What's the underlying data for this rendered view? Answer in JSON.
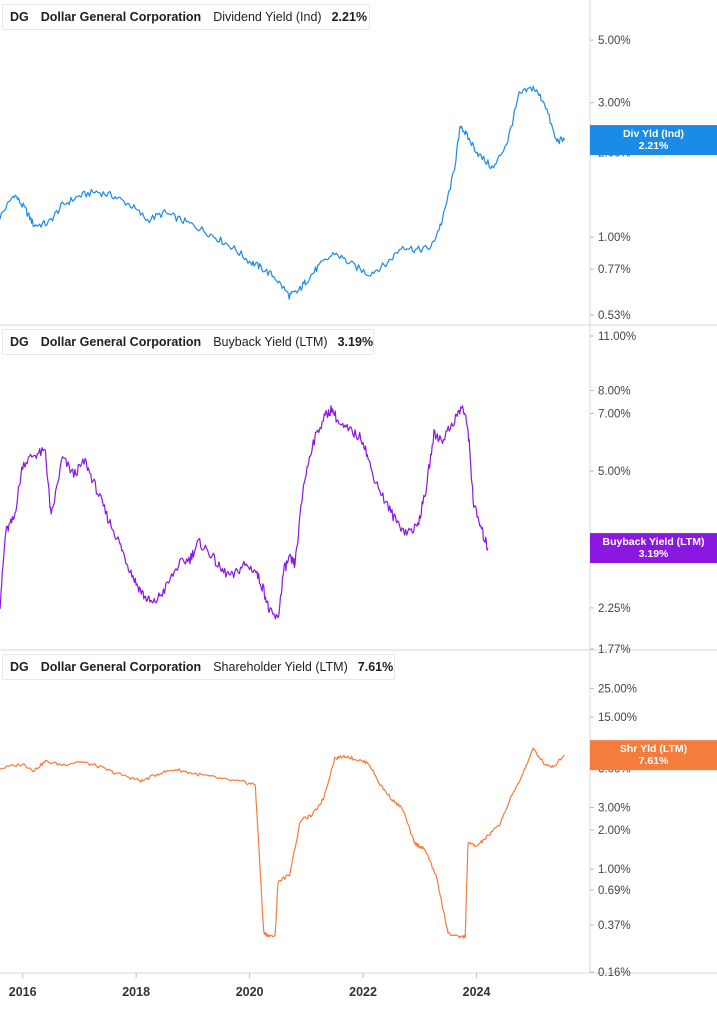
{
  "chart_data": [
    {
      "type": "line",
      "ticker": "DG",
      "company": "Dollar General Corporation",
      "metric": "Dividend Yield (Ind)",
      "latest_value": "2.21%",
      "marker_label": "Div Yld (Ind)",
      "marker_value": "2.21%",
      "color": "#1a8ce8",
      "scale": "log",
      "ylim": [
        0.5,
        6.5
      ],
      "yticks": [
        {
          "value": 5.0,
          "label": "5.00%"
        },
        {
          "value": 3.0,
          "label": "3.00%"
        },
        {
          "value": 2.0,
          "label": "2.00%"
        },
        {
          "value": 1.0,
          "label": "1.00%"
        },
        {
          "value": 0.77,
          "label": "0.77%"
        },
        {
          "value": 0.53,
          "label": "0.53%"
        }
      ],
      "x": [
        2015.6,
        2015.85,
        2016.05,
        2016.2,
        2016.45,
        2016.7,
        2017.0,
        2017.3,
        2017.6,
        2017.9,
        2018.2,
        2018.5,
        2018.8,
        2019.1,
        2019.4,
        2019.7,
        2020.0,
        2020.2,
        2020.45,
        2020.7,
        2020.85,
        2021.0,
        2021.2,
        2021.5,
        2021.8,
        2022.1,
        2022.4,
        2022.7,
        2022.95,
        2023.2,
        2023.4,
        2023.6,
        2023.72,
        2023.85,
        2024.05,
        2024.3,
        2024.55,
        2024.75,
        2025.0,
        2025.2,
        2025.4,
        2025.55
      ],
      "values": [
        1.18,
        1.42,
        1.25,
        1.1,
        1.12,
        1.3,
        1.4,
        1.45,
        1.4,
        1.3,
        1.15,
        1.22,
        1.15,
        1.08,
        1.0,
        0.92,
        0.82,
        0.78,
        0.72,
        0.62,
        0.64,
        0.7,
        0.78,
        0.88,
        0.8,
        0.74,
        0.8,
        0.93,
        0.9,
        0.92,
        1.15,
        1.7,
        2.5,
        2.25,
        1.95,
        1.75,
        2.2,
        3.2,
        3.4,
        3.0,
        2.2,
        2.21
      ]
    },
    {
      "type": "line",
      "ticker": "DG",
      "company": "Dollar General Corporation",
      "metric": "Buyback Yield (LTM)",
      "latest_value": "3.19%",
      "marker_label": "Buyback Yield (LTM)",
      "marker_value": "3.19%",
      "color": "#8a18e0",
      "scale": "log",
      "ylim": [
        1.77,
        11.0
      ],
      "yticks": [
        {
          "value": 11.0,
          "label": "11.00%"
        },
        {
          "value": 8.0,
          "label": "8.00%"
        },
        {
          "value": 7.0,
          "label": "7.00%"
        },
        {
          "value": 5.0,
          "label": "5.00%"
        },
        {
          "value": 2.25,
          "label": "2.25%"
        },
        {
          "value": 1.77,
          "label": "1.77%"
        }
      ],
      "x": [
        2015.6,
        2015.7,
        2015.85,
        2016.0,
        2016.2,
        2016.4,
        2016.5,
        2016.7,
        2016.9,
        2017.1,
        2017.3,
        2017.5,
        2017.7,
        2017.85,
        2018.0,
        2018.15,
        2018.3,
        2018.5,
        2018.75,
        2018.95,
        2019.1,
        2019.3,
        2019.5,
        2019.7,
        2019.9,
        2020.1,
        2020.25,
        2020.35,
        2020.5,
        2020.6,
        2020.7,
        2020.8,
        2020.95,
        2021.1,
        2021.3,
        2021.45,
        2021.6,
        2021.8,
        2022.0,
        2022.15,
        2022.35,
        2022.55,
        2022.75,
        2022.95,
        2023.1,
        2023.25,
        2023.4,
        2023.6,
        2023.75,
        2023.85,
        2023.95,
        2024.1,
        2024.2
      ],
      "values": [
        2.3,
        3.5,
        3.8,
        5.2,
        5.5,
        5.6,
        3.8,
        5.4,
        4.9,
        5.3,
        4.5,
        3.8,
        3.3,
        2.9,
        2.6,
        2.4,
        2.3,
        2.5,
        2.9,
        3.0,
        3.3,
        3.1,
        2.8,
        2.7,
        2.9,
        2.8,
        2.5,
        2.2,
        2.1,
        2.8,
        3.0,
        2.9,
        4.6,
        5.8,
        6.8,
        7.2,
        6.5,
        6.3,
        6.0,
        5.0,
        4.3,
        3.8,
        3.5,
        3.6,
        4.4,
        6.2,
        6.0,
        6.7,
        7.3,
        6.4,
        4.1,
        3.5,
        3.19
      ]
    },
    {
      "type": "line",
      "ticker": "DG",
      "company": "Dollar General Corporation",
      "metric": "Shareholder Yield (LTM)",
      "latest_value": "7.61%",
      "marker_label": "Shr Yld (LTM)",
      "marker_value": "7.61%",
      "color": "#f47c3c",
      "scale": "log",
      "ylim": [
        0.16,
        40
      ],
      "yticks": [
        {
          "value": 25.0,
          "label": "25.00%"
        },
        {
          "value": 15.0,
          "label": "15.00%"
        },
        {
          "value": 6.0,
          "label": "6.00%"
        },
        {
          "value": 3.0,
          "label": "3.00%"
        },
        {
          "value": 2.0,
          "label": "2.00%"
        },
        {
          "value": 1.0,
          "label": "1.00%"
        },
        {
          "value": 0.69,
          "label": "0.69%"
        },
        {
          "value": 0.37,
          "label": "0.37%"
        },
        {
          "value": 0.16,
          "label": "0.16%"
        }
      ],
      "x": [
        2015.6,
        2016.0,
        2016.2,
        2016.4,
        2016.7,
        2017.0,
        2017.3,
        2017.6,
        2017.9,
        2018.1,
        2018.4,
        2018.7,
        2019.0,
        2019.3,
        2019.6,
        2019.9,
        2020.1,
        2020.25,
        2020.3,
        2020.45,
        2020.5,
        2020.7,
        2020.9,
        2021.1,
        2021.3,
        2021.5,
        2021.7,
        2021.9,
        2022.1,
        2022.3,
        2022.5,
        2022.7,
        2022.9,
        2023.0,
        2023.1,
        2023.3,
        2023.45,
        2023.5,
        2023.65,
        2023.8,
        2023.85,
        2024.0,
        2024.2,
        2024.4,
        2024.6,
        2024.8,
        2025.0,
        2025.2,
        2025.35,
        2025.55
      ],
      "values": [
        6.0,
        6.5,
        5.8,
        6.8,
        6.4,
        6.8,
        6.3,
        5.6,
        5.1,
        4.8,
        5.5,
        5.9,
        5.5,
        5.2,
        4.9,
        4.7,
        4.5,
        0.32,
        0.31,
        0.3,
        0.8,
        0.9,
        2.4,
        2.6,
        3.5,
        7.2,
        7.5,
        7.0,
        6.6,
        4.5,
        3.5,
        2.9,
        1.6,
        1.5,
        1.4,
        0.85,
        0.4,
        0.32,
        0.3,
        0.3,
        1.6,
        1.5,
        1.8,
        2.2,
        3.5,
        5.3,
        8.5,
        6.5,
        6.2,
        7.61
      ]
    }
  ],
  "x_axis": {
    "ticks": [
      {
        "value": 2016,
        "label": "2016"
      },
      {
        "value": 2018,
        "label": "2018"
      },
      {
        "value": 2020,
        "label": "2020"
      },
      {
        "value": 2022,
        "label": "2022"
      },
      {
        "value": 2024,
        "label": "2024"
      }
    ]
  }
}
